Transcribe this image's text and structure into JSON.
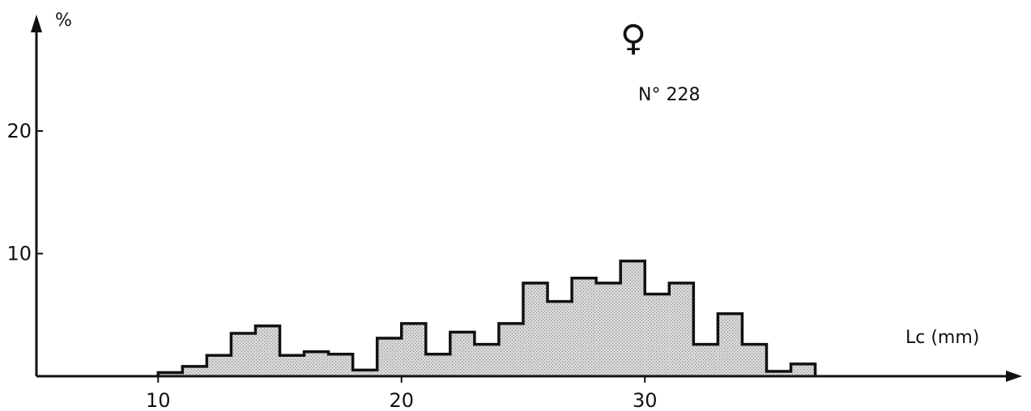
{
  "chart_data": {
    "type": "bar",
    "subtype": "histogram",
    "title": "♀",
    "annotation": "N° 228",
    "xlabel": "Lc (mm)",
    "ylabel": "%",
    "xlim": [
      5,
      45.5
    ],
    "ylim": [
      0,
      29.5
    ],
    "xticks": [
      10,
      20,
      30
    ],
    "yticks": [
      10,
      20
    ],
    "bin_width": 1,
    "bins_start": [
      10,
      11,
      12,
      13,
      14,
      15,
      16,
      17,
      18,
      19,
      20,
      21,
      22,
      23,
      24,
      25,
      26,
      27,
      28,
      29,
      30,
      31,
      32,
      33,
      34,
      35,
      36
    ],
    "values": [
      0.3,
      0.8,
      1.7,
      3.5,
      4.1,
      1.7,
      2.0,
      1.8,
      0.5,
      3.1,
      4.3,
      1.8,
      3.6,
      2.6,
      4.3,
      7.6,
      6.1,
      8.0,
      7.6,
      9.4,
      6.7,
      7.6,
      2.6,
      5.1,
      2.6,
      0.4,
      1.0
    ],
    "fill_color": "#c9c9c9",
    "line_color": "#111111",
    "grid": false
  }
}
